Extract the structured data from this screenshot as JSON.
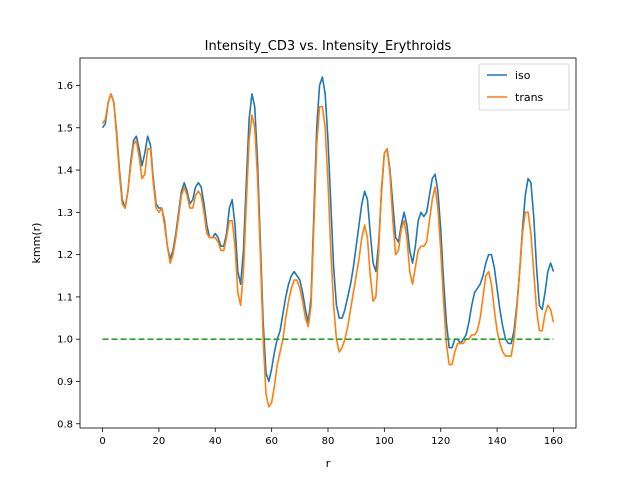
{
  "chart_data": {
    "type": "line",
    "title": "Intensity_CD3 vs. Intensity_Erythroids",
    "xlabel": "r",
    "ylabel": "kmm(r)",
    "xlim": [
      -8,
      168
    ],
    "ylim": [
      0.79,
      1.665
    ],
    "xticks": [
      0,
      20,
      40,
      60,
      80,
      100,
      120,
      140,
      160
    ],
    "yticks": [
      0.8,
      0.9,
      1.0,
      1.1,
      1.2,
      1.3,
      1.4,
      1.5,
      1.6
    ],
    "grid": false,
    "legend_position": "top-right",
    "series": [
      {
        "name": "iso",
        "color": "#1f77b4",
        "style": "solid",
        "points": [
          [
            0,
            1.5
          ],
          [
            1,
            1.51
          ],
          [
            2,
            1.56
          ],
          [
            3,
            1.58
          ],
          [
            4,
            1.56
          ],
          [
            5,
            1.49
          ],
          [
            6,
            1.4
          ],
          [
            7,
            1.33
          ],
          [
            8,
            1.31
          ],
          [
            9,
            1.35
          ],
          [
            10,
            1.42
          ],
          [
            11,
            1.47
          ],
          [
            12,
            1.48
          ],
          [
            13,
            1.45
          ],
          [
            14,
            1.41
          ],
          [
            15,
            1.44
          ],
          [
            16,
            1.48
          ],
          [
            17,
            1.46
          ],
          [
            18,
            1.38
          ],
          [
            19,
            1.32
          ],
          [
            20,
            1.31
          ],
          [
            21,
            1.31
          ],
          [
            22,
            1.28
          ],
          [
            23,
            1.22
          ],
          [
            24,
            1.19
          ],
          [
            25,
            1.21
          ],
          [
            26,
            1.25
          ],
          [
            27,
            1.3
          ],
          [
            28,
            1.35
          ],
          [
            29,
            1.37
          ],
          [
            30,
            1.35
          ],
          [
            31,
            1.32
          ],
          [
            32,
            1.33
          ],
          [
            33,
            1.36
          ],
          [
            34,
            1.37
          ],
          [
            35,
            1.36
          ],
          [
            36,
            1.32
          ],
          [
            37,
            1.27
          ],
          [
            38,
            1.24
          ],
          [
            39,
            1.24
          ],
          [
            40,
            1.25
          ],
          [
            41,
            1.24
          ],
          [
            42,
            1.22
          ],
          [
            43,
            1.22
          ],
          [
            44,
            1.25
          ],
          [
            45,
            1.31
          ],
          [
            46,
            1.33
          ],
          [
            47,
            1.27
          ],
          [
            48,
            1.16
          ],
          [
            49,
            1.13
          ],
          [
            50,
            1.21
          ],
          [
            51,
            1.37
          ],
          [
            52,
            1.52
          ],
          [
            53,
            1.58
          ],
          [
            54,
            1.55
          ],
          [
            55,
            1.42
          ],
          [
            56,
            1.23
          ],
          [
            57,
            1.04
          ],
          [
            58,
            0.92
          ],
          [
            59,
            0.9
          ],
          [
            60,
            0.93
          ],
          [
            61,
            0.97
          ],
          [
            62,
            1.0
          ],
          [
            63,
            1.02
          ],
          [
            64,
            1.06
          ],
          [
            65,
            1.1
          ],
          [
            66,
            1.13
          ],
          [
            67,
            1.15
          ],
          [
            68,
            1.16
          ],
          [
            69,
            1.15
          ],
          [
            70,
            1.14
          ],
          [
            71,
            1.11
          ],
          [
            72,
            1.07
          ],
          [
            73,
            1.04
          ],
          [
            74,
            1.1
          ],
          [
            75,
            1.3
          ],
          [
            76,
            1.5
          ],
          [
            77,
            1.6
          ],
          [
            78,
            1.62
          ],
          [
            79,
            1.58
          ],
          [
            80,
            1.47
          ],
          [
            81,
            1.32
          ],
          [
            82,
            1.17
          ],
          [
            83,
            1.08
          ],
          [
            84,
            1.05
          ],
          [
            85,
            1.05
          ],
          [
            86,
            1.07
          ],
          [
            87,
            1.1
          ],
          [
            88,
            1.13
          ],
          [
            89,
            1.17
          ],
          [
            90,
            1.22
          ],
          [
            91,
            1.27
          ],
          [
            92,
            1.32
          ],
          [
            93,
            1.35
          ],
          [
            94,
            1.33
          ],
          [
            95,
            1.25
          ],
          [
            96,
            1.18
          ],
          [
            97,
            1.16
          ],
          [
            98,
            1.23
          ],
          [
            99,
            1.35
          ],
          [
            100,
            1.44
          ],
          [
            101,
            1.45
          ],
          [
            102,
            1.4
          ],
          [
            103,
            1.32
          ],
          [
            104,
            1.24
          ],
          [
            105,
            1.23
          ],
          [
            106,
            1.27
          ],
          [
            107,
            1.3
          ],
          [
            108,
            1.27
          ],
          [
            109,
            1.21
          ],
          [
            110,
            1.18
          ],
          [
            111,
            1.22
          ],
          [
            112,
            1.28
          ],
          [
            113,
            1.3
          ],
          [
            114,
            1.29
          ],
          [
            115,
            1.3
          ],
          [
            116,
            1.34
          ],
          [
            117,
            1.38
          ],
          [
            118,
            1.39
          ],
          [
            119,
            1.35
          ],
          [
            120,
            1.26
          ],
          [
            121,
            1.14
          ],
          [
            122,
            1.04
          ],
          [
            123,
            0.98
          ],
          [
            124,
            0.98
          ],
          [
            125,
            1.0
          ],
          [
            126,
            1.0
          ],
          [
            127,
            0.99
          ],
          [
            128,
            1.0
          ],
          [
            129,
            1.01
          ],
          [
            130,
            1.04
          ],
          [
            131,
            1.08
          ],
          [
            132,
            1.11
          ],
          [
            133,
            1.12
          ],
          [
            134,
            1.13
          ],
          [
            135,
            1.15
          ],
          [
            136,
            1.18
          ],
          [
            137,
            1.2
          ],
          [
            138,
            1.2
          ],
          [
            139,
            1.17
          ],
          [
            140,
            1.12
          ],
          [
            141,
            1.07
          ],
          [
            142,
            1.03
          ],
          [
            143,
            1.0
          ],
          [
            144,
            0.99
          ],
          [
            145,
            0.99
          ],
          [
            146,
            1.02
          ],
          [
            147,
            1.08
          ],
          [
            148,
            1.16
          ],
          [
            149,
            1.26
          ],
          [
            150,
            1.34
          ],
          [
            151,
            1.38
          ],
          [
            152,
            1.37
          ],
          [
            153,
            1.29
          ],
          [
            154,
            1.17
          ],
          [
            155,
            1.08
          ],
          [
            156,
            1.07
          ],
          [
            157,
            1.11
          ],
          [
            158,
            1.16
          ],
          [
            159,
            1.18
          ],
          [
            160,
            1.16
          ]
        ]
      },
      {
        "name": "trans",
        "color": "#ff7f0e",
        "style": "solid",
        "points": [
          [
            0,
            1.51
          ],
          [
            1,
            1.52
          ],
          [
            2,
            1.56
          ],
          [
            3,
            1.58
          ],
          [
            4,
            1.56
          ],
          [
            5,
            1.48
          ],
          [
            6,
            1.39
          ],
          [
            7,
            1.32
          ],
          [
            8,
            1.31
          ],
          [
            9,
            1.35
          ],
          [
            10,
            1.41
          ],
          [
            11,
            1.46
          ],
          [
            12,
            1.47
          ],
          [
            13,
            1.43
          ],
          [
            14,
            1.38
          ],
          [
            15,
            1.39
          ],
          [
            16,
            1.45
          ],
          [
            17,
            1.45
          ],
          [
            18,
            1.37
          ],
          [
            19,
            1.31
          ],
          [
            20,
            1.3
          ],
          [
            21,
            1.31
          ],
          [
            22,
            1.27
          ],
          [
            23,
            1.22
          ],
          [
            24,
            1.18
          ],
          [
            25,
            1.2
          ],
          [
            26,
            1.24
          ],
          [
            27,
            1.29
          ],
          [
            28,
            1.34
          ],
          [
            29,
            1.36
          ],
          [
            30,
            1.34
          ],
          [
            31,
            1.31
          ],
          [
            32,
            1.31
          ],
          [
            33,
            1.34
          ],
          [
            34,
            1.35
          ],
          [
            35,
            1.34
          ],
          [
            36,
            1.3
          ],
          [
            37,
            1.25
          ],
          [
            38,
            1.24
          ],
          [
            39,
            1.24
          ],
          [
            40,
            1.24
          ],
          [
            41,
            1.23
          ],
          [
            42,
            1.21
          ],
          [
            43,
            1.21
          ],
          [
            44,
            1.24
          ],
          [
            45,
            1.28
          ],
          [
            46,
            1.28
          ],
          [
            47,
            1.22
          ],
          [
            48,
            1.11
          ],
          [
            49,
            1.08
          ],
          [
            50,
            1.16
          ],
          [
            51,
            1.32
          ],
          [
            52,
            1.47
          ],
          [
            53,
            1.53
          ],
          [
            54,
            1.5
          ],
          [
            55,
            1.38
          ],
          [
            56,
            1.2
          ],
          [
            57,
            1.0
          ],
          [
            58,
            0.87
          ],
          [
            59,
            0.84
          ],
          [
            60,
            0.85
          ],
          [
            61,
            0.89
          ],
          [
            62,
            0.94
          ],
          [
            63,
            0.97
          ],
          [
            64,
            1.0
          ],
          [
            65,
            1.05
          ],
          [
            66,
            1.09
          ],
          [
            67,
            1.12
          ],
          [
            68,
            1.14
          ],
          [
            69,
            1.14
          ],
          [
            70,
            1.12
          ],
          [
            71,
            1.09
          ],
          [
            72,
            1.05
          ],
          [
            73,
            1.03
          ],
          [
            74,
            1.08
          ],
          [
            75,
            1.27
          ],
          [
            76,
            1.46
          ],
          [
            77,
            1.55
          ],
          [
            78,
            1.55
          ],
          [
            79,
            1.5
          ],
          [
            80,
            1.37
          ],
          [
            81,
            1.21
          ],
          [
            82,
            1.08
          ],
          [
            83,
            1.0
          ],
          [
            84,
            0.97
          ],
          [
            85,
            0.98
          ],
          [
            86,
            1.0
          ],
          [
            87,
            1.03
          ],
          [
            88,
            1.07
          ],
          [
            89,
            1.11
          ],
          [
            90,
            1.15
          ],
          [
            91,
            1.19
          ],
          [
            92,
            1.24
          ],
          [
            93,
            1.27
          ],
          [
            94,
            1.24
          ],
          [
            95,
            1.15
          ],
          [
            96,
            1.09
          ],
          [
            97,
            1.1
          ],
          [
            98,
            1.21
          ],
          [
            99,
            1.36
          ],
          [
            100,
            1.44
          ],
          [
            101,
            1.45
          ],
          [
            102,
            1.39
          ],
          [
            103,
            1.28
          ],
          [
            104,
            1.2
          ],
          [
            105,
            1.21
          ],
          [
            106,
            1.26
          ],
          [
            107,
            1.28
          ],
          [
            108,
            1.24
          ],
          [
            109,
            1.16
          ],
          [
            110,
            1.13
          ],
          [
            111,
            1.17
          ],
          [
            112,
            1.21
          ],
          [
            113,
            1.22
          ],
          [
            114,
            1.22
          ],
          [
            115,
            1.23
          ],
          [
            116,
            1.28
          ],
          [
            117,
            1.33
          ],
          [
            118,
            1.36
          ],
          [
            119,
            1.31
          ],
          [
            120,
            1.21
          ],
          [
            121,
            1.09
          ],
          [
            122,
            0.99
          ],
          [
            123,
            0.94
          ],
          [
            124,
            0.94
          ],
          [
            125,
            0.97
          ],
          [
            126,
            0.99
          ],
          [
            127,
            0.99
          ],
          [
            128,
            0.99
          ],
          [
            129,
            1.0
          ],
          [
            130,
            1.0
          ],
          [
            131,
            1.01
          ],
          [
            132,
            1.01
          ],
          [
            133,
            1.02
          ],
          [
            134,
            1.05
          ],
          [
            135,
            1.1
          ],
          [
            136,
            1.15
          ],
          [
            137,
            1.16
          ],
          [
            138,
            1.13
          ],
          [
            139,
            1.07
          ],
          [
            140,
            1.02
          ],
          [
            141,
            0.99
          ],
          [
            142,
            0.97
          ],
          [
            143,
            0.96
          ],
          [
            144,
            0.96
          ],
          [
            145,
            0.96
          ],
          [
            146,
            1.0
          ],
          [
            147,
            1.07
          ],
          [
            148,
            1.16
          ],
          [
            149,
            1.25
          ],
          [
            150,
            1.3
          ],
          [
            151,
            1.3
          ],
          [
            152,
            1.25
          ],
          [
            153,
            1.16
          ],
          [
            154,
            1.07
          ],
          [
            155,
            1.02
          ],
          [
            156,
            1.02
          ],
          [
            157,
            1.06
          ],
          [
            158,
            1.08
          ],
          [
            159,
            1.07
          ],
          [
            160,
            1.04
          ]
        ]
      },
      {
        "color": "#2ca02c",
        "style": "dashed",
        "points": [
          [
            0,
            1.0
          ],
          [
            160,
            1.0
          ]
        ]
      }
    ]
  }
}
